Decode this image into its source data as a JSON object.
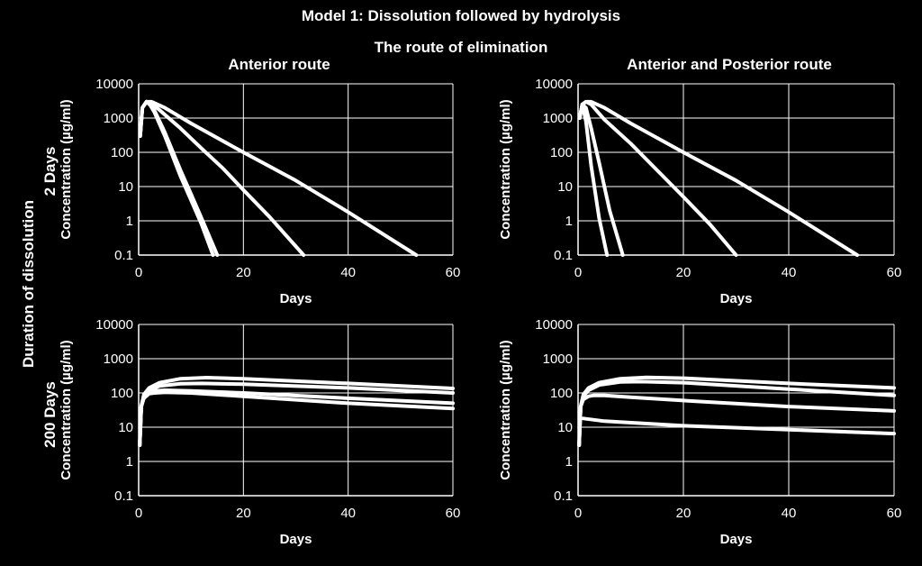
{
  "title": "Model 1: Dissolution followed by hydrolysis",
  "column_group_title": "The route of elimination",
  "column_titles": [
    "Anterior route",
    "Anterior and Posterior route"
  ],
  "row_group_title": "Duration of dissolution",
  "row_titles": [
    "2 Days",
    "200 Days"
  ],
  "colors": {
    "background": "#000000",
    "foreground": "#ffffff"
  },
  "chart_data": [
    {
      "type": "line",
      "panel": "Anterior route / 2 Days",
      "xlabel": "Days",
      "ylabel": "Concentration (µg/ml)",
      "xlim": [
        0,
        60
      ],
      "ylim": [
        0.1,
        10000
      ],
      "yscale": "log",
      "x_ticks": [
        "0",
        "20",
        "40",
        "60"
      ],
      "y_ticks": [
        "0.1",
        "1",
        "10",
        "100",
        "1000",
        "10000"
      ],
      "grid": true,
      "series": [
        {
          "x": [
            0.3,
            0.7,
            1.5,
            2.2,
            3,
            5,
            8,
            10,
            12,
            14.2
          ],
          "y": [
            300,
            2000,
            3000,
            2400,
            1500,
            300,
            20,
            4,
            0.8,
            0.1
          ]
        },
        {
          "x": [
            0.3,
            0.7,
            1.5,
            2.2,
            3,
            5,
            8,
            10,
            12,
            15
          ],
          "y": [
            300,
            2000,
            3000,
            2500,
            1700,
            380,
            30,
            6,
            1.2,
            0.1
          ]
        },
        {
          "x": [
            0.3,
            0.7,
            1.5,
            2.2,
            4,
            8,
            12,
            16,
            20,
            25,
            31.5
          ],
          "y": [
            300,
            2000,
            3000,
            2900,
            1700,
            500,
            130,
            35,
            8,
            1.3,
            0.1
          ]
        },
        {
          "x": [
            0.3,
            0.7,
            1.5,
            2.5,
            5,
            10,
            20,
            30,
            40,
            53
          ],
          "y": [
            300,
            2000,
            3000,
            3000,
            2000,
            700,
            100,
            15,
            1.8,
            0.1
          ]
        }
      ]
    },
    {
      "type": "line",
      "panel": "Anterior and Posterior route / 2 Days",
      "xlabel": "Days",
      "ylabel": "Concentration (µg/ml)",
      "xlim": [
        0,
        60
      ],
      "ylim": [
        0.1,
        10000
      ],
      "yscale": "log",
      "x_ticks": [
        "0",
        "20",
        "40",
        "60"
      ],
      "y_ticks": [
        "0.1",
        "1",
        "10",
        "100",
        "1000",
        "10000"
      ],
      "grid": true,
      "series": [
        {
          "x": [
            0.3,
            0.8,
            1.5,
            2.5,
            4,
            5.5
          ],
          "y": [
            1000,
            2500,
            800,
            40,
            1.2,
            0.1
          ]
        },
        {
          "x": [
            0.3,
            0.8,
            1.5,
            2.5,
            4,
            6,
            8.5
          ],
          "y": [
            1000,
            2500,
            2000,
            500,
            50,
            2,
            0.1
          ]
        },
        {
          "x": [
            0.3,
            0.8,
            1.5,
            2.5,
            5,
            10,
            15,
            20,
            25,
            30
          ],
          "y": [
            1000,
            2500,
            3000,
            2500,
            900,
            180,
            30,
            5,
            0.8,
            0.1
          ]
        },
        {
          "x": [
            0.3,
            0.8,
            1.5,
            2.5,
            5,
            10,
            20,
            30,
            40,
            53
          ],
          "y": [
            1000,
            2500,
            3000,
            3000,
            2000,
            700,
            100,
            15,
            1.8,
            0.1
          ]
        }
      ]
    },
    {
      "type": "line",
      "panel": "Anterior route / 200 Days",
      "xlabel": "Days",
      "ylabel": "Concentration (µg/ml)",
      "xlim": [
        0,
        60
      ],
      "ylim": [
        0.1,
        10000
      ],
      "yscale": "log",
      "x_ticks": [
        "0",
        "20",
        "40",
        "60"
      ],
      "y_ticks": [
        "0.1",
        "1",
        "10",
        "100",
        "1000",
        "10000"
      ],
      "grid": true,
      "series": [
        {
          "x": [
            0.2,
            0.5,
            1,
            2,
            3,
            5,
            10,
            20,
            40,
            60
          ],
          "y": [
            3,
            40,
            70,
            95,
            100,
            105,
            100,
            80,
            50,
            35
          ]
        },
        {
          "x": [
            0.2,
            0.5,
            1,
            2,
            3,
            5,
            10,
            20,
            40,
            60
          ],
          "y": [
            3,
            40,
            80,
            105,
            115,
            120,
            115,
            100,
            70,
            50
          ]
        },
        {
          "x": [
            0.2,
            0.5,
            1,
            2,
            4,
            8,
            12,
            20,
            40,
            60
          ],
          "y": [
            3,
            40,
            80,
            120,
            160,
            185,
            190,
            180,
            140,
            100
          ]
        },
        {
          "x": [
            0.2,
            0.5,
            1,
            2,
            4,
            8,
            13,
            20,
            40,
            60
          ],
          "y": [
            3,
            40,
            90,
            140,
            200,
            260,
            280,
            260,
            190,
            135
          ]
        }
      ]
    },
    {
      "type": "line",
      "panel": "Anterior and Posterior route / 200 Days",
      "xlabel": "Days",
      "ylabel": "Concentration (µg/ml)",
      "xlim": [
        0,
        60
      ],
      "ylim": [
        0.1,
        10000
      ],
      "yscale": "log",
      "x_ticks": [
        "0",
        "20",
        "40",
        "60"
      ],
      "y_ticks": [
        "0.1",
        "1",
        "10",
        "100",
        "1000",
        "10000"
      ],
      "grid": true,
      "series": [
        {
          "x": [
            1,
            5,
            20,
            40,
            60
          ],
          "y": [
            18,
            15,
            11,
            8.5,
            6.5
          ]
        },
        {
          "x": [
            0.2,
            0.5,
            1,
            2,
            3,
            5,
            10,
            20,
            40,
            60
          ],
          "y": [
            3,
            40,
            65,
            80,
            85,
            85,
            75,
            60,
            40,
            30
          ]
        },
        {
          "x": [
            0.2,
            0.5,
            1,
            2,
            4,
            8,
            12,
            20,
            40,
            60
          ],
          "y": [
            3,
            40,
            80,
            120,
            170,
            210,
            215,
            200,
            130,
            85
          ]
        },
        {
          "x": [
            0.2,
            0.5,
            1,
            2,
            4,
            8,
            13,
            20,
            40,
            60
          ],
          "y": [
            3,
            40,
            90,
            140,
            200,
            260,
            285,
            270,
            190,
            140
          ]
        }
      ]
    }
  ]
}
